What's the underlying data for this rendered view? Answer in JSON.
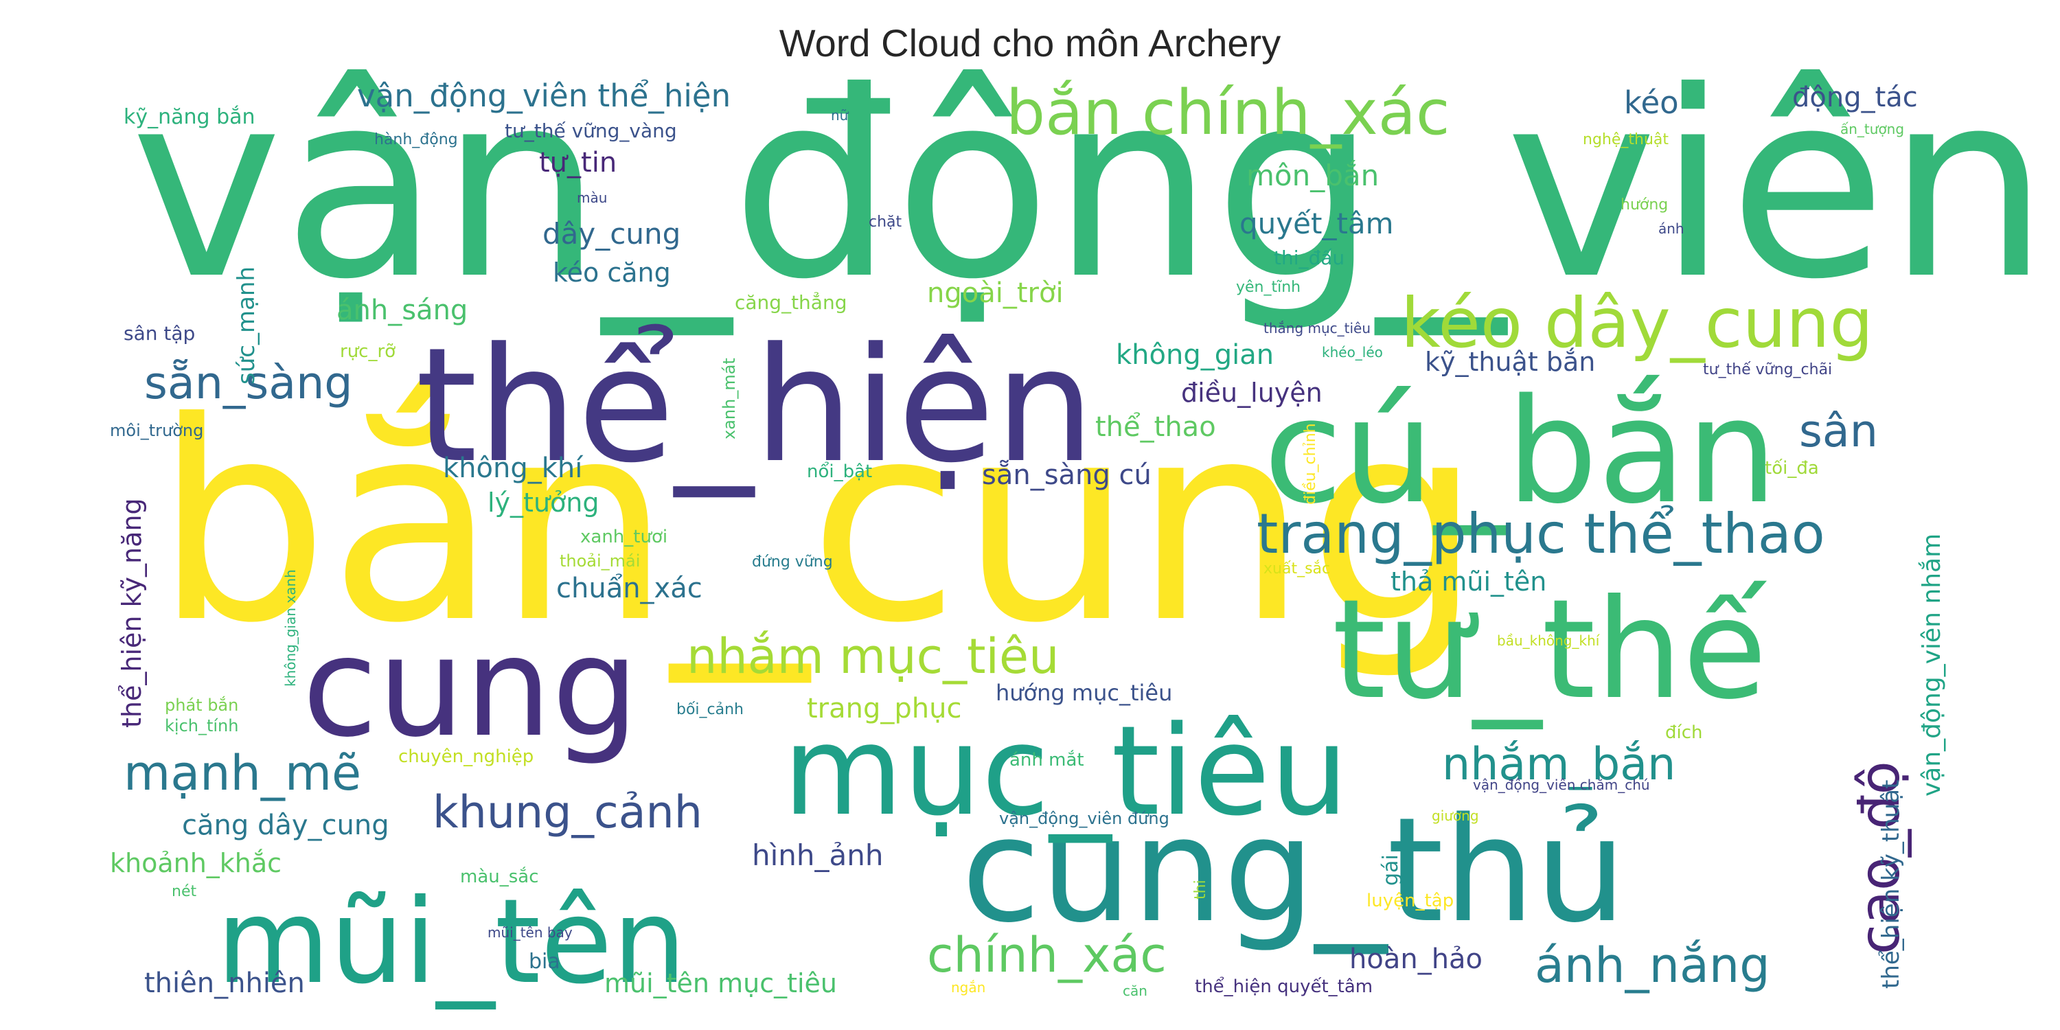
{
  "chart_data": {
    "type": "wordcloud",
    "title": "Word Cloud cho môn Archery",
    "colormap": "viridis",
    "words": [
      {
        "text": "vận_động_viên",
        "color": "#35b779"
      },
      {
        "text": "bắn_cung",
        "color": "#fde725"
      },
      {
        "text": "thể_hiện",
        "color": "#443983"
      },
      {
        "text": "cú_bắn",
        "color": "#3bbb75"
      },
      {
        "text": "cung_thủ",
        "color": "#21918c"
      },
      {
        "text": "tư_thế",
        "color": "#3bbb75"
      },
      {
        "text": "cung",
        "color": "#46327e"
      },
      {
        "text": "mục_tiêu",
        "color": "#1fa088"
      },
      {
        "text": "mũi_tên",
        "color": "#1fa187"
      },
      {
        "text": "bắn chính_xác",
        "color": "#7ad151"
      },
      {
        "text": "kéo dây_cung",
        "color": "#a0da39"
      },
      {
        "text": "trang_phục thể_thao",
        "color": "#2a788e"
      },
      {
        "text": "cao_độ",
        "color": "#482475"
      },
      {
        "text": "nhắm mục_tiêu",
        "color": "#a5db36"
      },
      {
        "text": "mạnh_mẽ",
        "color": "#2a788e"
      },
      {
        "text": "sẵn_sàng",
        "color": "#31688e"
      },
      {
        "text": "khung_cảnh",
        "color": "#3b528b"
      },
      {
        "text": "chính_xác",
        "color": "#5ec962"
      },
      {
        "text": "ánh_nắng",
        "color": "#287d8e"
      },
      {
        "text": "nhắm_bắn",
        "color": "#21918c"
      },
      {
        "text": "sân",
        "color": "#31688e"
      },
      {
        "text": "vận_động_viên thể_hiện",
        "color": "#2c728e"
      },
      {
        "text": "kéo",
        "color": "#31688e"
      },
      {
        "text": "động_tác",
        "color": "#3b528b"
      },
      {
        "text": "môn_bắn",
        "color": "#4ac16d"
      },
      {
        "text": "quyết_tâm",
        "color": "#2a788e"
      },
      {
        "text": "dây_cung",
        "color": "#31688e"
      },
      {
        "text": "tự_tin",
        "color": "#482878"
      },
      {
        "text": "kéo căng",
        "color": "#2c728e"
      },
      {
        "text": "ánh_sáng",
        "color": "#4ac16d"
      },
      {
        "text": "ngoài_trời",
        "color": "#86d549"
      },
      {
        "text": "không_gian",
        "color": "#22a884"
      },
      {
        "text": "kỹ_thuật bắn",
        "color": "#3b528b"
      },
      {
        "text": "điều_luyện",
        "color": "#46327e"
      },
      {
        "text": "thể_thao",
        "color": "#5ec962"
      },
      {
        "text": "không_khí",
        "color": "#2a788e"
      },
      {
        "text": "sẵn_sàng cú",
        "color": "#3e4989"
      },
      {
        "text": "lý_tưởng",
        "color": "#2db27d"
      },
      {
        "text": "chuẩn_xác",
        "color": "#2c728e"
      },
      {
        "text": "thả mũi_tên",
        "color": "#21918c"
      },
      {
        "text": "trang_phục",
        "color": "#a5db36"
      },
      {
        "text": "hướng mục_tiêu",
        "color": "#3b528b"
      },
      {
        "text": "căng dây_cung",
        "color": "#2a788e"
      },
      {
        "text": "hình_ảnh",
        "color": "#3e4989"
      },
      {
        "text": "khoảnh_khắc",
        "color": "#5ec962"
      },
      {
        "text": "thiên_nhiên",
        "color": "#3b528b"
      },
      {
        "text": "mũi_tên mục_tiêu",
        "color": "#4ac16d"
      },
      {
        "text": "hoàn_hảo",
        "color": "#414487"
      },
      {
        "text": "thể_hiện kỹ_năng",
        "color": "#482878"
      },
      {
        "text": "sức_mạnh",
        "color": "#21918c"
      },
      {
        "text": "vận_động_viên nhắm",
        "color": "#20a486"
      },
      {
        "text": "thể_hiện kỹ_thuật",
        "color": "#31688e"
      },
      {
        "text": "kỹ_năng bắn",
        "color": "#2db27d"
      },
      {
        "text": "tư_thế vững_vàng",
        "color": "#3b528b"
      },
      {
        "text": "sân tập",
        "color": "#3e4989"
      },
      {
        "text": "căng_thẳng",
        "color": "#86d549"
      },
      {
        "text": "thi_đấu",
        "color": "#22a884"
      },
      {
        "text": "xanh_mát",
        "color": "#4ac16d"
      },
      {
        "text": "gái",
        "color": "#21918c"
      },
      {
        "text": "hành_động",
        "color": "#2c728e"
      },
      {
        "text": "nữ",
        "color": "#2c728e"
      },
      {
        "text": "nghệ_thuật",
        "color": "#b5de2b"
      },
      {
        "text": "ấn_tượng",
        "color": "#5ec962"
      },
      {
        "text": "màu",
        "color": "#3e4989"
      },
      {
        "text": "chặt",
        "color": "#3e4989"
      },
      {
        "text": "hướng",
        "color": "#7ad151"
      },
      {
        "text": "ánh",
        "color": "#3e4989"
      },
      {
        "text": "yên_tĩnh",
        "color": "#35b779"
      },
      {
        "text": "thắng mục_tiêu",
        "color": "#3e4989"
      },
      {
        "text": "khéo_léo",
        "color": "#2db27d"
      },
      {
        "text": "tư_thế vững_chãi",
        "color": "#414487"
      },
      {
        "text": "rực_rỡ",
        "color": "#a0da39"
      },
      {
        "text": "môi_trường",
        "color": "#31688e"
      },
      {
        "text": "nổi_bật",
        "color": "#2db27d"
      },
      {
        "text": "điều_chỉnh",
        "color": "#fde725"
      },
      {
        "text": "tối_đa",
        "color": "#a0da39"
      },
      {
        "text": "xanh_tươi",
        "color": "#5ec962"
      },
      {
        "text": "thoải_mái",
        "color": "#a5db36"
      },
      {
        "text": "đứng vững",
        "color": "#287d8e"
      },
      {
        "text": "xuất_sắc",
        "color": "#d8e219"
      },
      {
        "text": "không_gian xanh",
        "color": "#2db27d"
      },
      {
        "text": "bầu_không_khí",
        "color": "#c2df23"
      },
      {
        "text": "phát bắn",
        "color": "#7ad151"
      },
      {
        "text": "bối_cảnh",
        "color": "#287d8e"
      },
      {
        "text": "kịch_tính",
        "color": "#4ac16d"
      },
      {
        "text": "chuyên_nghiệp",
        "color": "#c2df23"
      },
      {
        "text": "ánh mắt",
        "color": "#3bbb75"
      },
      {
        "text": "đích",
        "color": "#a0da39"
      },
      {
        "text": "vận_động_viên chăm_chú",
        "color": "#414487"
      },
      {
        "text": "vận_động_viên đứng",
        "color": "#2c728e"
      },
      {
        "text": "giương",
        "color": "#c2df23"
      },
      {
        "text": "thi",
        "color": "#a0da39"
      },
      {
        "text": "màu_sắc",
        "color": "#4ac16d"
      },
      {
        "text": "nét",
        "color": "#4ac16d"
      },
      {
        "text": "luyện_tập",
        "color": "#fde725"
      },
      {
        "text": "mũi_tên bay",
        "color": "#3e4989"
      },
      {
        "text": "bia",
        "color": "#2c728e"
      },
      {
        "text": "ngắn",
        "color": "#fde725"
      },
      {
        "text": "căn",
        "color": "#4ac16d"
      },
      {
        "text": "thể_hiện quyết_tâm",
        "color": "#46327e"
      }
    ]
  }
}
